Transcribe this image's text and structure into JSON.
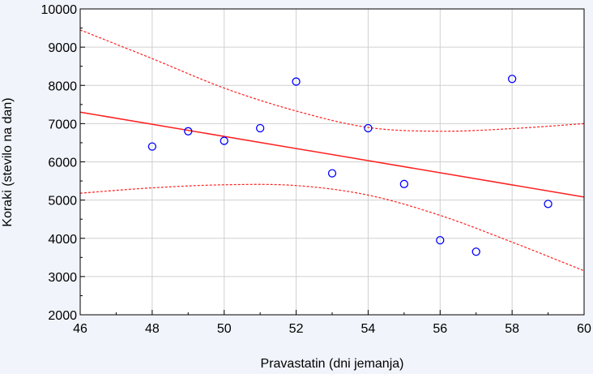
{
  "chart_data": {
    "type": "scatter",
    "xlabel": "Pravastatin (dni jemanja)",
    "ylabel": "Koraki (stevilo na dan)",
    "xlim": [
      46,
      60
    ],
    "ylim": [
      2000,
      10000
    ],
    "x_ticks": [
      46,
      48,
      50,
      52,
      54,
      56,
      58,
      60
    ],
    "y_ticks": [
      2000,
      3000,
      4000,
      5000,
      6000,
      7000,
      8000,
      9000,
      10000
    ],
    "grid": true,
    "points": [
      {
        "x": 48,
        "y": 6400
      },
      {
        "x": 49,
        "y": 6800
      },
      {
        "x": 50,
        "y": 6550
      },
      {
        "x": 51,
        "y": 6880
      },
      {
        "x": 52,
        "y": 8100
      },
      {
        "x": 53,
        "y": 5700
      },
      {
        "x": 54,
        "y": 6880
      },
      {
        "x": 55,
        "y": 5420
      },
      {
        "x": 56,
        "y": 3950
      },
      {
        "x": 57,
        "y": 3650
      },
      {
        "x": 58,
        "y": 8170
      },
      {
        "x": 59,
        "y": 4900
      }
    ],
    "regression_line": {
      "x": [
        46,
        60
      ],
      "y": [
        7300,
        5080
      ]
    },
    "confidence_upper": [
      {
        "x": 46,
        "y": 9450
      },
      {
        "x": 48,
        "y": 8700
      },
      {
        "x": 50,
        "y": 7930
      },
      {
        "x": 52,
        "y": 7330
      },
      {
        "x": 54,
        "y": 6900
      },
      {
        "x": 56,
        "y": 6800
      },
      {
        "x": 58,
        "y": 6870
      },
      {
        "x": 60,
        "y": 7000
      }
    ],
    "confidence_lower": [
      {
        "x": 46,
        "y": 5180
      },
      {
        "x": 48,
        "y": 5320
      },
      {
        "x": 50,
        "y": 5400
      },
      {
        "x": 52,
        "y": 5380
      },
      {
        "x": 54,
        "y": 5130
      },
      {
        "x": 56,
        "y": 4600
      },
      {
        "x": 58,
        "y": 3900
      },
      {
        "x": 60,
        "y": 3150
      }
    ],
    "colors": {
      "points": "#0000ff",
      "line": "#ff2020",
      "grid": "#d0d0d0",
      "plot_bg": "#ffffff",
      "page_bg": "#f1f4fb"
    }
  }
}
